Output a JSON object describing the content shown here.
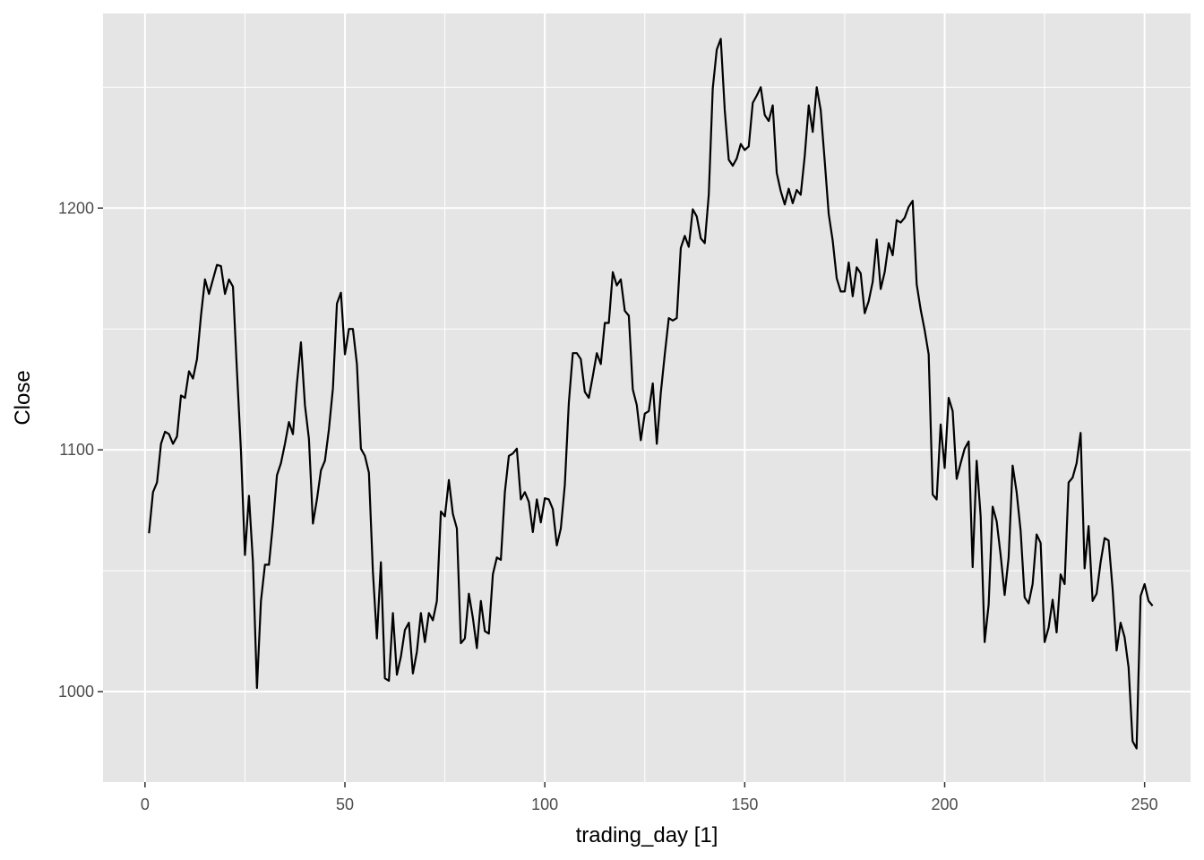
{
  "chart_data": {
    "type": "line",
    "title": "",
    "xlabel": "trading_day [1]",
    "ylabel": "Close",
    "xlim": [
      -10.5,
      261.5
    ],
    "ylim": [
      962.6,
      1280.5
    ],
    "x_ticks": [
      0,
      50,
      100,
      150,
      200,
      250
    ],
    "x_minor_ticks": [
      25,
      75,
      125,
      175,
      225
    ],
    "y_ticks": [
      1000,
      1100,
      1200
    ],
    "y_minor_ticks": [
      1050,
      1150,
      1250
    ],
    "grid": true,
    "legend": "none",
    "colors": {
      "panel_background": "#e5e5e5",
      "grid": "#ffffff",
      "line": "#000000",
      "tick_text": "#4d4d4d",
      "tick_mark": "#333333"
    },
    "series": [
      {
        "x_start": 1,
        "values": [
          1065.5,
          1082.5,
          1086.5,
          1102.5,
          1107.5,
          1106.5,
          1102.5,
          1105.5,
          1122.5,
          1121.5,
          1132.5,
          1129.5,
          1137.5,
          1155.5,
          1170.5,
          1164.5,
          1170.5,
          1176.5,
          1176.0,
          1164.5,
          1170.5,
          1167.5,
          1132.5,
          1099.5,
          1056.5,
          1081.0,
          1053.5,
          1001.5,
          1037.5,
          1052.5,
          1052.5,
          1069.5,
          1089.5,
          1094.5,
          1102.5,
          1111.5,
          1106.5,
          1127.5,
          1144.5,
          1118.5,
          1104.5,
          1069.5,
          1079.5,
          1091.5,
          1095.5,
          1108.5,
          1125.5,
          1160.5,
          1165.0,
          1139.5,
          1150.0,
          1150.0,
          1135.5,
          1100.5,
          1097.5,
          1090.5,
          1049.5,
          1022.0,
          1053.5,
          1005.5,
          1004.5,
          1032.5,
          1007.0,
          1014.5,
          1025.5,
          1028.5,
          1007.5,
          1016.5,
          1032.5,
          1020.5,
          1032.5,
          1029.5,
          1037.5,
          1074.5,
          1072.5,
          1087.5,
          1073.5,
          1067.5,
          1020.0,
          1022.0,
          1040.5,
          1030.5,
          1018.0,
          1037.5,
          1025.0,
          1024.0,
          1048.5,
          1055.5,
          1054.5,
          1082.5,
          1097.5,
          1098.5,
          1100.5,
          1079.5,
          1082.5,
          1078.5,
          1066.0,
          1079.5,
          1070.0,
          1080.0,
          1079.5,
          1075.5,
          1060.5,
          1067.5,
          1085.5,
          1119.5,
          1140.0,
          1140.0,
          1137.5,
          1124.0,
          1121.5,
          1130.5,
          1140.0,
          1135.5,
          1152.5,
          1152.5,
          1173.5,
          1168.0,
          1170.5,
          1157.5,
          1155.5,
          1125.0,
          1118.5,
          1104.0,
          1115.0,
          1116.0,
          1127.5,
          1102.5,
          1123.5,
          1139.5,
          1154.5,
          1153.5,
          1154.5,
          1183.5,
          1188.5,
          1184.0,
          1199.5,
          1196.5,
          1187.5,
          1185.5,
          1205.5,
          1249.5,
          1265.5,
          1270.0,
          1240.5,
          1220.0,
          1217.5,
          1220.5,
          1226.5,
          1224.0,
          1225.5,
          1243.5,
          1246.5,
          1250.0,
          1238.5,
          1236.0,
          1242.5,
          1214.5,
          1207.0,
          1201.5,
          1208.0,
          1202.0,
          1207.5,
          1205.5,
          1221.5,
          1242.5,
          1231.5,
          1250.0,
          1240.5,
          1219.5,
          1197.5,
          1186.5,
          1171.0,
          1165.5,
          1165.5,
          1177.5,
          1163.5,
          1175.5,
          1173.0,
          1156.5,
          1161.5,
          1169.5,
          1187.0,
          1166.5,
          1173.5,
          1185.5,
          1180.5,
          1195.0,
          1194.0,
          1196.0,
          1200.5,
          1203.0,
          1168.5,
          1158.0,
          1149.5,
          1139.5,
          1081.5,
          1079.5,
          1110.5,
          1092.5,
          1121.5,
          1116.0,
          1088.0,
          1094.5,
          1100.5,
          1103.5,
          1051.5,
          1095.5,
          1072.5,
          1020.5,
          1036.0,
          1076.5,
          1070.5,
          1056.5,
          1040.0,
          1055.5,
          1093.5,
          1082.5,
          1066.5,
          1039.0,
          1036.5,
          1044.5,
          1065.0,
          1061.5,
          1020.5,
          1026.5,
          1038.0,
          1024.5,
          1048.5,
          1044.5,
          1086.5,
          1088.5,
          1094.5,
          1107.0,
          1051.0,
          1068.5,
          1037.5,
          1040.5,
          1053.5,
          1063.5,
          1062.5,
          1042.5,
          1017.0,
          1028.5,
          1022.5,
          1010.0,
          979.5,
          976.5,
          1039.5,
          1044.5,
          1037.5,
          1035.5
        ]
      }
    ]
  }
}
